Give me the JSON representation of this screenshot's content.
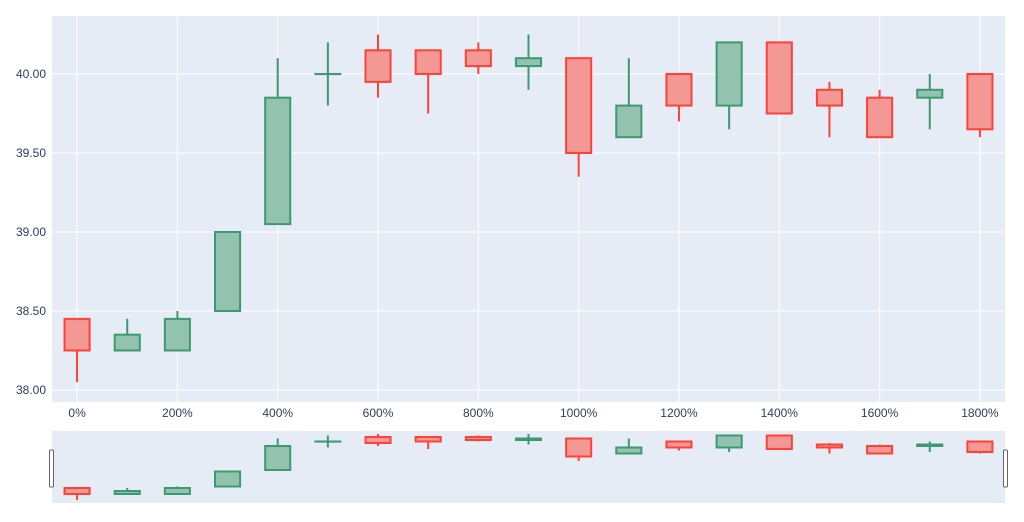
{
  "chart_data": {
    "type": "candlestick",
    "title": "",
    "xlabel": "",
    "ylabel": "",
    "x_tick_format": "percent",
    "xlim": [
      -0.5,
      18.5
    ],
    "ylim": [
      37.924,
      40.367
    ],
    "x_ticks": [
      0,
      2,
      4,
      6,
      8,
      10,
      12,
      14,
      16,
      18
    ],
    "x_tick_labels": [
      "0%",
      "200%",
      "400%",
      "600%",
      "800%",
      "1000%",
      "1200%",
      "1400%",
      "1600%",
      "1800%"
    ],
    "y_ticks": [
      38.0,
      38.5,
      39.0,
      39.5,
      40.0
    ],
    "y_tick_labels": [
      "38.00",
      "38.50",
      "39.00",
      "39.50",
      "40.00"
    ],
    "grid": true,
    "rangeslider": true,
    "rangeslider_ylim": [
      37.95,
      40.35
    ],
    "colors": {
      "increasing": "#3d9970",
      "increasing_fill": "#93c3ae",
      "decreasing": "#ff4136",
      "decreasing_fill": "#f39894",
      "plot_bg": "#e5ecf6",
      "grid": "#ffffff"
    },
    "x": [
      0,
      1,
      2,
      3,
      4,
      5,
      6,
      7,
      8,
      9,
      10,
      11,
      12,
      13,
      14,
      15,
      16,
      17,
      18
    ],
    "open": [
      38.45,
      38.25,
      38.25,
      38.5,
      39.05,
      40.0,
      40.15,
      40.15,
      40.15,
      40.05,
      40.1,
      39.6,
      40.0,
      39.8,
      40.2,
      39.9,
      39.85,
      39.85,
      40.0
    ],
    "high": [
      38.45,
      38.45,
      38.5,
      39.0,
      40.1,
      40.2,
      40.25,
      40.15,
      40.2,
      40.25,
      40.1,
      40.1,
      40.0,
      40.2,
      40.2,
      39.95,
      39.9,
      40.0,
      40.0
    ],
    "low": [
      38.05,
      38.25,
      38.25,
      38.5,
      39.05,
      39.8,
      39.85,
      39.75,
      40.0,
      39.9,
      39.35,
      39.6,
      39.7,
      39.65,
      39.75,
      39.6,
      39.6,
      39.65,
      39.6
    ],
    "close": [
      38.25,
      38.35,
      38.45,
      39.0,
      39.85,
      40.0,
      39.95,
      40.0,
      40.05,
      40.1,
      39.5,
      39.8,
      39.8,
      40.2,
      39.75,
      39.8,
      39.6,
      39.9,
      39.65
    ]
  }
}
